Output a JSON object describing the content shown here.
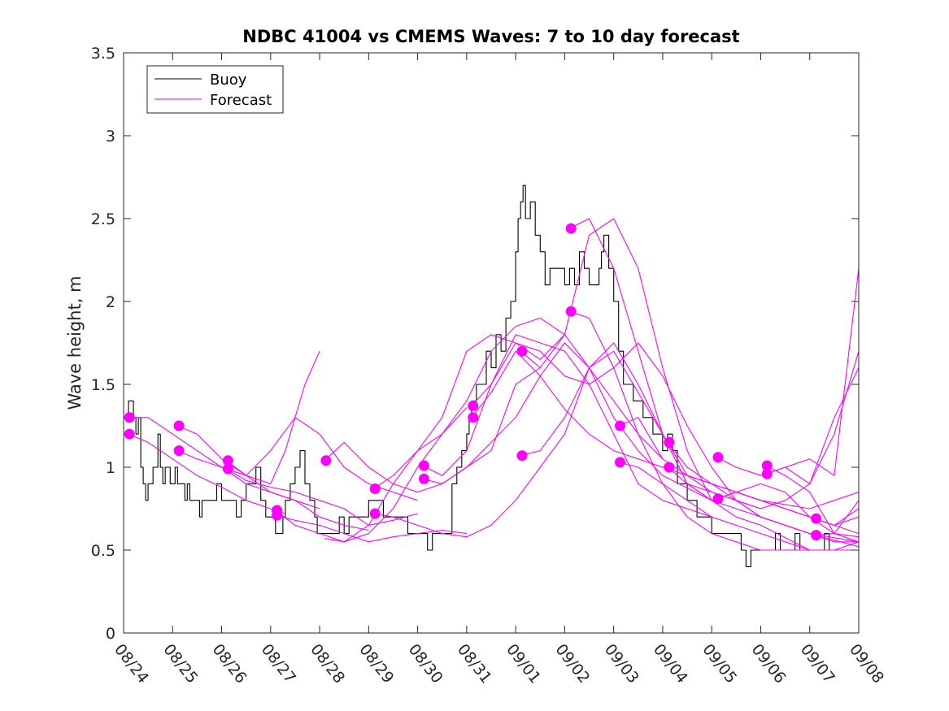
{
  "chart_data": {
    "type": "line",
    "title": "NDBC 41004 vs CMEMS Waves: 7 to 10 day forecast",
    "xlabel": "",
    "ylabel": "Wave height, m",
    "xlim": [
      0,
      15
    ],
    "ylim": [
      0,
      3.5
    ],
    "x_tick_labels": [
      "08/24",
      "08/25",
      "08/26",
      "08/27",
      "08/28",
      "08/29",
      "08/30",
      "08/31",
      "09/01",
      "09/02",
      "09/03",
      "09/04",
      "09/05",
      "09/06",
      "09/07",
      "09/08"
    ],
    "y_tick_values": [
      0,
      0.5,
      1,
      1.5,
      2,
      2.5,
      3,
      3.5
    ],
    "y_tick_labels": [
      "0",
      "0.5",
      "1",
      "1.5",
      "2",
      "2.5",
      "3",
      "3.5"
    ],
    "legend": {
      "location": "top-left",
      "entries": [
        {
          "label": "Buoy",
          "color": "#000000"
        },
        {
          "label": "Forecast",
          "color": "#ff00ff"
        }
      ]
    },
    "colors": {
      "buoy": "#000000",
      "forecast": "#ff00ff"
    },
    "series": [
      {
        "name": "Buoy",
        "x": [
          0,
          0.1,
          0.15,
          0.2,
          0.25,
          0.3,
          0.35,
          0.4,
          0.45,
          0.5,
          0.55,
          0.6,
          0.7,
          0.75,
          0.8,
          0.85,
          0.9,
          0.95,
          1.0,
          1.05,
          1.1,
          1.15,
          1.2,
          1.25,
          1.3,
          1.35,
          1.4,
          1.5,
          1.55,
          1.6,
          1.7,
          1.8,
          1.9,
          2.0,
          2.1,
          2.2,
          2.3,
          2.4,
          2.5,
          2.6,
          2.7,
          2.8,
          2.9,
          3.0,
          3.1,
          3.2,
          3.25,
          3.3,
          3.4,
          3.5,
          3.6,
          3.7,
          3.8,
          3.9,
          3.95,
          4.0,
          4.1,
          4.2,
          4.3,
          4.4,
          4.5,
          4.6,
          4.7,
          4.8,
          4.9,
          5.0,
          5.1,
          5.2,
          5.3,
          5.4,
          5.5,
          5.6,
          5.7,
          5.8,
          5.9,
          6.0,
          6.1,
          6.2,
          6.3,
          6.4,
          6.5,
          6.6,
          6.7,
          6.8,
          6.9,
          7.0,
          7.05,
          7.1,
          7.2,
          7.3,
          7.4,
          7.5,
          7.6,
          7.7,
          7.8,
          7.9,
          8.0,
          8.05,
          8.1,
          8.15,
          8.2,
          8.3,
          8.4,
          8.5,
          8.6,
          8.7,
          8.8,
          8.9,
          9.0,
          9.1,
          9.2,
          9.3,
          9.4,
          9.5,
          9.6,
          9.7,
          9.75,
          9.8,
          9.9,
          10.0,
          10.1,
          10.2,
          10.3,
          10.4,
          10.5,
          10.6,
          10.7,
          10.8,
          10.9,
          11.0,
          11.1,
          11.2,
          11.3,
          11.4,
          11.5,
          11.6,
          11.7,
          11.8,
          11.9,
          12.0,
          12.1,
          12.2,
          12.3,
          12.4,
          12.5,
          12.6,
          12.7,
          12.8,
          12.9,
          13.0,
          13.1,
          13.2,
          13.3,
          13.4,
          13.5,
          13.6,
          13.7,
          13.8,
          13.9,
          14.0,
          14.1,
          14.2,
          14.3,
          14.4
        ],
        "y": [
          1.3,
          1.4,
          1.4,
          1.3,
          1.2,
          1.3,
          1.0,
          0.9,
          0.8,
          0.9,
          0.9,
          1.0,
          1.2,
          1.0,
          0.9,
          1.0,
          1.0,
          0.9,
          0.9,
          1.0,
          0.9,
          0.9,
          0.9,
          0.8,
          0.9,
          0.8,
          0.8,
          0.8,
          0.7,
          0.8,
          0.8,
          0.8,
          0.9,
          0.8,
          0.8,
          0.8,
          0.7,
          0.8,
          0.9,
          0.9,
          1.0,
          0.8,
          0.7,
          0.7,
          0.6,
          0.6,
          0.7,
          0.8,
          0.9,
          1.0,
          1.1,
          0.9,
          0.8,
          0.7,
          0.6,
          0.6,
          0.6,
          0.6,
          0.6,
          0.7,
          0.6,
          0.7,
          0.7,
          0.7,
          0.7,
          0.8,
          0.8,
          0.8,
          0.7,
          0.7,
          0.7,
          0.7,
          0.7,
          0.6,
          0.6,
          0.6,
          0.6,
          0.5,
          0.6,
          0.6,
          0.6,
          0.6,
          0.9,
          1.0,
          1.1,
          1.2,
          1.3,
          1.4,
          1.5,
          1.5,
          1.7,
          1.6,
          1.8,
          1.7,
          1.9,
          2.0,
          2.3,
          2.5,
          2.6,
          2.7,
          2.5,
          2.6,
          2.4,
          2.3,
          2.1,
          2.2,
          2.2,
          2.2,
          2.1,
          2.2,
          2.1,
          2.3,
          2.2,
          2.1,
          2.1,
          2.2,
          2.3,
          2.4,
          2.2,
          2.0,
          1.7,
          1.5,
          1.5,
          1.4,
          1.4,
          1.3,
          1.3,
          1.2,
          1.2,
          1.1,
          1.2,
          1.1,
          0.9,
          0.9,
          0.8,
          0.8,
          0.7,
          0.7,
          0.7,
          0.6,
          0.6,
          0.6,
          0.6,
          0.6,
          0.6,
          0.5,
          0.4,
          0.5,
          0.5,
          0.5,
          0.5,
          0.5,
          0.6,
          0.5,
          0.5,
          0.5,
          0.6,
          0.5,
          0.5,
          0.5,
          0.5,
          0.5,
          0.6,
          0.5
        ]
      },
      {
        "name": "Forecast 1",
        "x": [
          0.1,
          0.5,
          1.0,
          1.5,
          2.0,
          2.5,
          3.0,
          3.3
        ],
        "y": [
          1.2,
          1.15,
          1.05,
          0.95,
          0.88,
          0.8,
          0.75,
          0.72
        ]
      },
      {
        "name": "Forecast 2",
        "x": [
          0.1,
          0.5,
          1.0,
          1.5,
          2.0,
          2.5,
          3.0,
          3.5,
          4.0
        ],
        "y": [
          1.3,
          1.3,
          1.2,
          1.1,
          1.0,
          0.9,
          0.85,
          0.8,
          0.75
        ]
      },
      {
        "name": "Forecast 3",
        "x": [
          1.1,
          1.5,
          2.0,
          2.5,
          3.0,
          3.5,
          4.0,
          4.5,
          5.0
        ],
        "y": [
          1.25,
          1.2,
          1.05,
          0.95,
          0.85,
          0.8,
          0.7,
          0.65,
          0.62
        ]
      },
      {
        "name": "Forecast 4",
        "x": [
          1.1,
          1.5,
          2.0,
          2.5,
          3.0,
          3.3,
          3.5,
          3.7,
          4.0
        ],
        "y": [
          1.1,
          1.05,
          1.0,
          0.95,
          0.9,
          1.1,
          1.3,
          1.5,
          1.7
        ]
      },
      {
        "name": "Forecast 5",
        "x": [
          2.1,
          2.5,
          3.0,
          3.5,
          4.0,
          4.5,
          5.0,
          5.5,
          6.0
        ],
        "y": [
          1.04,
          0.95,
          1.1,
          1.3,
          1.2,
          1.0,
          0.9,
          0.85,
          0.8
        ]
      },
      {
        "name": "Forecast 6",
        "x": [
          2.1,
          2.5,
          3.0,
          3.5,
          4.0,
          4.5,
          5.0,
          5.5,
          6.0
        ],
        "y": [
          0.99,
          0.92,
          0.88,
          0.85,
          0.8,
          0.75,
          0.65,
          0.68,
          0.72
        ]
      },
      {
        "name": "Forecast 7",
        "x": [
          3.1,
          3.5,
          4.0,
          4.5,
          5.0,
          5.5,
          6.0,
          6.5,
          7.0
        ],
        "y": [
          0.74,
          0.65,
          0.6,
          0.55,
          0.6,
          0.75,
          1.0,
          1.2,
          1.36
        ]
      },
      {
        "name": "Forecast 8",
        "x": [
          3.1,
          3.5,
          4.0,
          4.5,
          5.0,
          5.5,
          6.0,
          6.5,
          7.0
        ],
        "y": [
          0.71,
          0.68,
          0.65,
          0.6,
          0.55,
          0.58,
          0.6,
          0.62,
          0.6
        ]
      },
      {
        "name": "Forecast 9",
        "x": [
          4.1,
          4.5,
          5.0,
          5.5,
          6.0,
          6.5,
          7.0,
          7.5,
          8.0,
          8.5
        ],
        "y": [
          1.04,
          1.15,
          1.0,
          0.9,
          0.85,
          0.9,
          1.0,
          1.1,
          1.5,
          1.6
        ]
      },
      {
        "name": "Forecast 10",
        "x": [
          4.1,
          4.5,
          5.0,
          5.5,
          6.0,
          6.5,
          7.0,
          7.5,
          8.0,
          8.5,
          9.0
        ],
        "y": [
          0.57,
          0.55,
          0.65,
          0.9,
          1.1,
          1.3,
          1.7,
          1.8,
          1.75,
          1.65,
          1.8
        ]
      },
      {
        "name": "Forecast 11",
        "x": [
          5.1,
          5.5,
          6.0,
          6.5,
          7.0,
          7.5,
          8.0,
          8.5,
          9.0,
          9.5,
          10.0,
          10.5,
          11.0
        ],
        "y": [
          0.87,
          0.95,
          1.1,
          1.2,
          1.4,
          1.7,
          1.85,
          1.9,
          1.8,
          1.6,
          1.4,
          1.2,
          1.05
        ]
      },
      {
        "name": "Forecast 12",
        "x": [
          5.1,
          5.5,
          6.0,
          6.5,
          7.0,
          7.5,
          8.0,
          8.5,
          9.0,
          9.5,
          10.0,
          10.5,
          11.0,
          11.5,
          12.0
        ],
        "y": [
          0.72,
          0.7,
          0.65,
          0.6,
          0.58,
          0.65,
          0.8,
          1.0,
          1.2,
          1.6,
          1.75,
          1.5,
          1.2,
          0.9,
          0.8
        ]
      },
      {
        "name": "Forecast 13",
        "x": [
          6.1,
          6.5,
          7.0,
          7.5,
          8.0,
          8.5,
          9.0,
          9.5,
          10.0,
          10.5,
          11.0,
          11.5,
          12.0
        ],
        "y": [
          1.01,
          0.95,
          1.1,
          1.5,
          1.8,
          1.75,
          1.7,
          1.5,
          1.2,
          0.9,
          0.8,
          0.75,
          0.7
        ]
      },
      {
        "name": "Forecast 14",
        "x": [
          6.1,
          6.5,
          7.0,
          7.5,
          8.0,
          8.5,
          9.0,
          9.5,
          10.0,
          10.5,
          11.0,
          12.0,
          13.0,
          14.0,
          15.0
        ],
        "y": [
          0.93,
          0.9,
          1.0,
          1.15,
          1.3,
          1.55,
          1.75,
          1.6,
          1.3,
          1.1,
          0.95,
          0.8,
          0.7,
          0.6,
          0.55
        ]
      },
      {
        "name": "Forecast 15",
        "x": [
          7.1,
          7.5,
          8.0,
          8.5,
          9.0,
          9.5,
          10.0,
          10.5,
          11.0,
          11.5,
          12.0,
          12.5,
          13.0,
          14.0,
          15.0
        ],
        "y": [
          1.37,
          1.5,
          1.75,
          1.7,
          1.55,
          1.5,
          1.6,
          1.75,
          1.55,
          1.25,
          1.0,
          0.8,
          0.7,
          0.6,
          0.52
        ]
      },
      {
        "name": "Forecast 16",
        "x": [
          7.1,
          7.5,
          8.0,
          8.5,
          9.0,
          9.5,
          10.0,
          10.5,
          11.0,
          11.5,
          12.0,
          13.0,
          14.0,
          15.0
        ],
        "y": [
          1.3,
          1.45,
          1.7,
          1.55,
          1.35,
          1.2,
          1.1,
          1.05,
          1.0,
          0.95,
          0.9,
          0.8,
          0.7,
          0.6
        ]
      },
      {
        "name": "Forecast 17",
        "x": [
          8.1,
          8.5,
          9.0,
          9.5,
          10.0,
          10.5,
          11.0,
          11.5,
          12.0,
          13.0
        ],
        "y": [
          1.07,
          1.1,
          1.3,
          1.6,
          1.7,
          1.45,
          1.2,
          0.95,
          0.85,
          0.75
        ]
      },
      {
        "name": "Forecast 18",
        "x": [
          8.1,
          8.5,
          9.0,
          9.5,
          10.0,
          10.5,
          11.0,
          11.5,
          12.0,
          12.5,
          13.0,
          14.0,
          15.0
        ],
        "y": [
          1.7,
          1.6,
          1.8,
          2.4,
          2.5,
          2.2,
          1.6,
          1.1,
          0.8,
          0.7,
          0.65,
          0.5,
          0.5
        ]
      },
      {
        "name": "Forecast 19",
        "x": [
          9.1,
          9.5,
          10.0,
          10.5,
          11.0,
          11.5,
          12.0,
          12.5,
          13.0,
          14.0,
          15.0
        ],
        "y": [
          2.44,
          2.5,
          2.2,
          1.7,
          1.2,
          0.9,
          0.8,
          0.85,
          0.8,
          0.75,
          0.85
        ]
      },
      {
        "name": "Forecast 20",
        "x": [
          9.1,
          9.5,
          10.0,
          10.5,
          11.0,
          11.5,
          12.0,
          12.5,
          13.0,
          14.0,
          15.0
        ],
        "y": [
          1.94,
          1.9,
          1.6,
          1.2,
          0.9,
          0.7,
          0.6,
          0.55,
          0.5,
          0.5,
          0.5
        ]
      },
      {
        "name": "Forecast 21",
        "x": [
          10.1,
          10.5,
          11.0,
          11.5,
          12.0,
          12.5,
          13.0,
          13.5,
          14.0,
          14.5,
          15.0
        ],
        "y": [
          1.25,
          1.3,
          1.05,
          0.95,
          0.9,
          0.85,
          0.8,
          0.75,
          0.7,
          0.65,
          0.7
        ]
      },
      {
        "name": "Forecast 22",
        "x": [
          10.1,
          10.5,
          11.0,
          11.5,
          12.0,
          12.5,
          13.0,
          13.5,
          14.0,
          14.5,
          15.0
        ],
        "y": [
          1.03,
          1.0,
          0.9,
          0.8,
          0.7,
          0.65,
          0.6,
          0.55,
          0.5,
          0.5,
          0.55
        ]
      },
      {
        "name": "Forecast 23",
        "x": [
          11.1,
          11.5,
          12.0,
          12.5,
          13.0,
          13.5,
          14.0,
          14.5,
          15.0
        ],
        "y": [
          1.15,
          1.0,
          0.9,
          0.8,
          0.75,
          0.8,
          0.9,
          1.2,
          1.7
        ]
      },
      {
        "name": "Forecast 24",
        "x": [
          11.1,
          11.5,
          12.0,
          12.5,
          13.0,
          13.5,
          14.0,
          14.5,
          15.0
        ],
        "y": [
          1.0,
          0.9,
          0.85,
          0.8,
          0.7,
          0.65,
          0.6,
          0.55,
          0.55
        ]
      },
      {
        "name": "Forecast 25",
        "x": [
          12.1,
          12.5,
          13.0,
          13.5,
          14.0,
          14.5,
          15.0
        ],
        "y": [
          1.06,
          1.0,
          0.95,
          1.0,
          1.05,
          0.95,
          2.2
        ]
      },
      {
        "name": "Forecast 26",
        "x": [
          12.1,
          12.5,
          13.0,
          13.5,
          14.0,
          14.5,
          15.0
        ],
        "y": [
          0.81,
          0.85,
          0.9,
          0.85,
          0.7,
          0.6,
          0.55
        ]
      },
      {
        "name": "Forecast 27",
        "x": [
          13.1,
          13.5,
          14.0,
          14.5,
          15.0
        ],
        "y": [
          1.01,
          0.95,
          0.85,
          0.6,
          0.8
        ]
      },
      {
        "name": "Forecast 28",
        "x": [
          13.1,
          13.5,
          14.0,
          14.5,
          15.0
        ],
        "y": [
          0.96,
          1.0,
          0.9,
          1.3,
          1.6
        ]
      },
      {
        "name": "Forecast 29",
        "x": [
          14.1,
          14.5,
          15.0
        ],
        "y": [
          0.69,
          0.65,
          0.75
        ]
      },
      {
        "name": "Forecast 30",
        "x": [
          14.1,
          14.5,
          15.0
        ],
        "y": [
          0.59,
          0.6,
          0.58
        ]
      }
    ],
    "markers": {
      "name": "Forecast start",
      "x": [
        0.12,
        0.12,
        1.13,
        1.13,
        2.13,
        2.13,
        3.13,
        3.13,
        4.13,
        5.13,
        5.13,
        6.13,
        6.13,
        7.13,
        7.13,
        8.13,
        8.13,
        9.13,
        9.13,
        10.13,
        10.13,
        11.13,
        11.13,
        12.13,
        12.13,
        13.13,
        13.13,
        14.13,
        14.13
      ],
      "y": [
        1.3,
        1.2,
        1.25,
        1.1,
        1.04,
        0.99,
        0.74,
        0.71,
        1.04,
        0.87,
        0.72,
        1.01,
        0.93,
        1.37,
        1.3,
        1.07,
        1.7,
        2.44,
        1.94,
        1.25,
        1.03,
        1.15,
        1.0,
        1.06,
        0.81,
        1.01,
        0.96,
        0.69,
        0.59
      ]
    }
  }
}
